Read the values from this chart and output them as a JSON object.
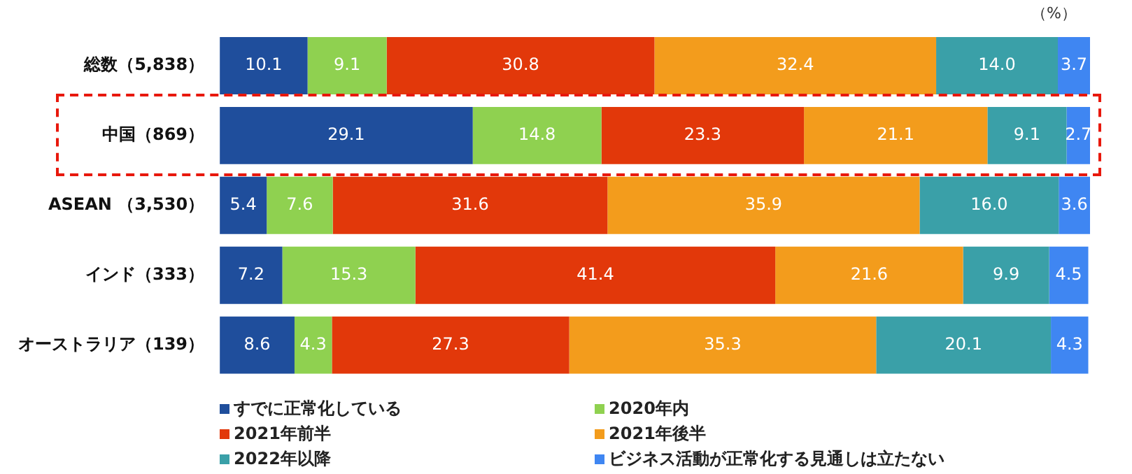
{
  "chart_data": {
    "type": "bar",
    "orientation": "horizontal",
    "stacked": true,
    "legend": "bottom",
    "tick_labels": "y",
    "categories": [
      "総数（5,838）",
      "中国（869）",
      "ASEAN （3,530）",
      "インド（333）",
      "オーストラリア（139）"
    ],
    "annotations": [
      "（%）"
    ],
    "series": [
      {
        "name": "すでに正常化している",
        "color": "#1f4e9c",
        "values": [
          10.1,
          29.1,
          5.4,
          7.2,
          8.6
        ],
        "value_labels": [
          "10.1",
          "29.1",
          "5.4",
          "7.2",
          "8.6"
        ]
      },
      {
        "name": "2020年内",
        "color": "#8fd150",
        "values": [
          9.1,
          14.8,
          7.6,
          15.3,
          4.3
        ],
        "value_labels": [
          "9.1",
          "14.8",
          "7.6",
          "15.3",
          "4.3"
        ]
      },
      {
        "name": "2021年前半",
        "color": "#e2380a",
        "values": [
          30.8,
          23.3,
          31.6,
          41.4,
          27.3
        ],
        "value_labels": [
          "30.8",
          "23.3",
          "31.6",
          "41.4",
          "27.3"
        ]
      },
      {
        "name": "2021年後半",
        "color": "#f39c1c",
        "values": [
          32.4,
          21.1,
          35.9,
          21.6,
          35.3
        ],
        "value_labels": [
          "32.4",
          "21.1",
          "35.9",
          "21.6",
          "35.3"
        ]
      },
      {
        "name": "2022年以降",
        "color": "#3aa0a8",
        "values": [
          14.0,
          9.1,
          16.0,
          9.9,
          20.1
        ],
        "value_labels": [
          "14.0",
          "9.1",
          "16.0",
          "9.9",
          "20.1"
        ]
      },
      {
        "name": "ビジネス活動が正常化する見通しは立たない",
        "color": "#3f86f2",
        "values": [
          3.7,
          2.7,
          3.6,
          4.5,
          4.3
        ],
        "value_labels": [
          "3.7",
          "2.7",
          "3.6",
          "4.5",
          "4.3"
        ]
      }
    ]
  }
}
